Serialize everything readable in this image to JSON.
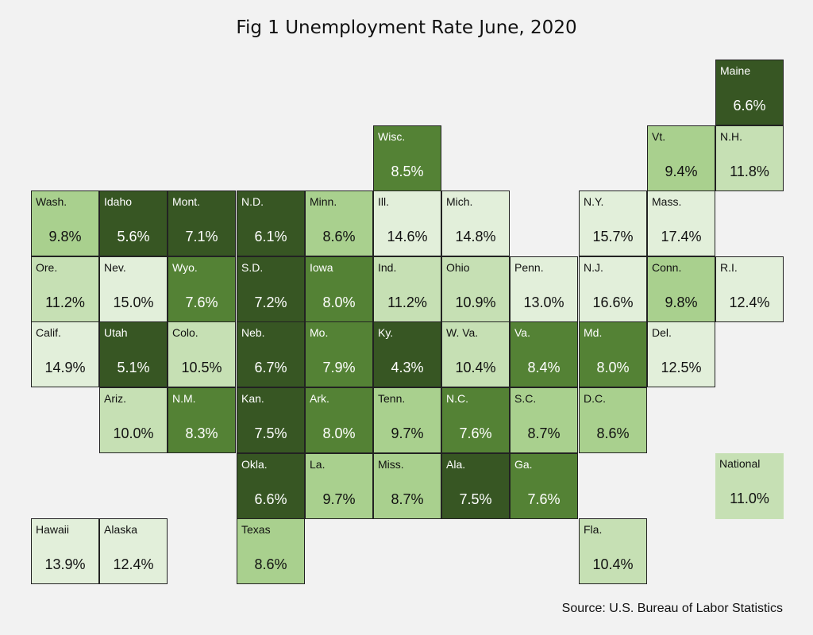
{
  "chart_data": {
    "type": "tile-map",
    "title": "Fig 1 Unemployment Rate June, 2020",
    "source": "Source: U.S. Bureau of Labor Statistics",
    "unit": "%",
    "states": [
      {
        "label": "Maine",
        "value": 6.6,
        "row": 0,
        "col": 10
      },
      {
        "label": "Wisc.",
        "value": 8.5,
        "row": 1,
        "col": 5
      },
      {
        "label": "Vt.",
        "value": 9.4,
        "row": 1,
        "col": 9
      },
      {
        "label": "N.H.",
        "value": 11.8,
        "row": 1,
        "col": 10
      },
      {
        "label": "Wash.",
        "value": 9.8,
        "row": 2,
        "col": 0
      },
      {
        "label": "Idaho",
        "value": 5.6,
        "row": 2,
        "col": 1
      },
      {
        "label": "Mont.",
        "value": 7.1,
        "row": 2,
        "col": 2
      },
      {
        "label": "N.D.",
        "value": 6.1,
        "row": 2,
        "col": 3
      },
      {
        "label": "Minn.",
        "value": 8.6,
        "row": 2,
        "col": 4
      },
      {
        "label": "Ill.",
        "value": 14.6,
        "row": 2,
        "col": 5
      },
      {
        "label": "Mich.",
        "value": 14.8,
        "row": 2,
        "col": 6
      },
      {
        "label": "N.Y.",
        "value": 15.7,
        "row": 2,
        "col": 8
      },
      {
        "label": "Mass.",
        "value": 17.4,
        "row": 2,
        "col": 9
      },
      {
        "label": "Ore.",
        "value": 11.2,
        "row": 3,
        "col": 0
      },
      {
        "label": "Nev.",
        "value": 15.0,
        "row": 3,
        "col": 1
      },
      {
        "label": "Wyo.",
        "value": 7.6,
        "row": 3,
        "col": 2
      },
      {
        "label": "S.D.",
        "value": 7.2,
        "row": 3,
        "col": 3
      },
      {
        "label": "Iowa",
        "value": 8.0,
        "row": 3,
        "col": 4
      },
      {
        "label": "Ind.",
        "value": 11.2,
        "row": 3,
        "col": 5
      },
      {
        "label": "Ohio",
        "value": 10.9,
        "row": 3,
        "col": 6
      },
      {
        "label": "Penn.",
        "value": 13.0,
        "row": 3,
        "col": 7
      },
      {
        "label": "N.J.",
        "value": 16.6,
        "row": 3,
        "col": 8
      },
      {
        "label": "Conn.",
        "value": 9.8,
        "row": 3,
        "col": 9
      },
      {
        "label": "R.I.",
        "value": 12.4,
        "row": 3,
        "col": 10
      },
      {
        "label": "Calif.",
        "value": 14.9,
        "row": 4,
        "col": 0
      },
      {
        "label": "Utah",
        "value": 5.1,
        "row": 4,
        "col": 1
      },
      {
        "label": "Colo.",
        "value": 10.5,
        "row": 4,
        "col": 2
      },
      {
        "label": "Neb.",
        "value": 6.7,
        "row": 4,
        "col": 3
      },
      {
        "label": "Mo.",
        "value": 7.9,
        "row": 4,
        "col": 4
      },
      {
        "label": "Ky.",
        "value": 4.3,
        "row": 4,
        "col": 5
      },
      {
        "label": "W. Va.",
        "value": 10.4,
        "row": 4,
        "col": 6
      },
      {
        "label": "Va.",
        "value": 8.4,
        "row": 4,
        "col": 7
      },
      {
        "label": "Md.",
        "value": 8.0,
        "row": 4,
        "col": 8
      },
      {
        "label": "Del.",
        "value": 12.5,
        "row": 4,
        "col": 9
      },
      {
        "label": "Ariz.",
        "value": 10.0,
        "row": 5,
        "col": 1
      },
      {
        "label": "N.M.",
        "value": 8.3,
        "row": 5,
        "col": 2
      },
      {
        "label": "Kan.",
        "value": 7.5,
        "row": 5,
        "col": 3
      },
      {
        "label": "Ark.",
        "value": 8.0,
        "row": 5,
        "col": 4
      },
      {
        "label": "Tenn.",
        "value": 9.7,
        "row": 5,
        "col": 5
      },
      {
        "label": "N.C.",
        "value": 7.6,
        "row": 5,
        "col": 6
      },
      {
        "label": "S.C.",
        "value": 8.7,
        "row": 5,
        "col": 7
      },
      {
        "label": "D.C.",
        "value": 8.6,
        "row": 5,
        "col": 8
      },
      {
        "label": "Okla.",
        "value": 6.6,
        "row": 6,
        "col": 3
      },
      {
        "label": "La.",
        "value": 9.7,
        "row": 6,
        "col": 4
      },
      {
        "label": "Miss.",
        "value": 8.7,
        "row": 6,
        "col": 5
      },
      {
        "label": "Ala.",
        "value": 7.5,
        "row": 6,
        "col": 6
      },
      {
        "label": "Ga.",
        "value": 7.6,
        "row": 6,
        "col": 7
      },
      {
        "label": "Hawaii",
        "value": 13.9,
        "row": 7,
        "col": 0
      },
      {
        "label": "Alaska",
        "value": 12.4,
        "row": 7,
        "col": 1
      },
      {
        "label": "Texas",
        "value": 8.6,
        "row": 7,
        "col": 3
      },
      {
        "label": "Fla.",
        "value": 10.4,
        "row": 7,
        "col": 8
      }
    ],
    "national": {
      "label": "National",
      "value": 11.0,
      "row": 6,
      "col": 10
    },
    "color_scale": [
      {
        "max": 7.5,
        "fill": "#375623",
        "text": "#ffffff"
      },
      {
        "max": 8.5,
        "fill": "#548235",
        "text": "#ffffff"
      },
      {
        "max": 9.9,
        "fill": "#a9d08e",
        "text": "#111111"
      },
      {
        "max": 11.99,
        "fill": "#c6e0b4",
        "text": "#111111"
      },
      {
        "max": 99,
        "fill": "#e2efda",
        "text": "#111111"
      }
    ]
  }
}
